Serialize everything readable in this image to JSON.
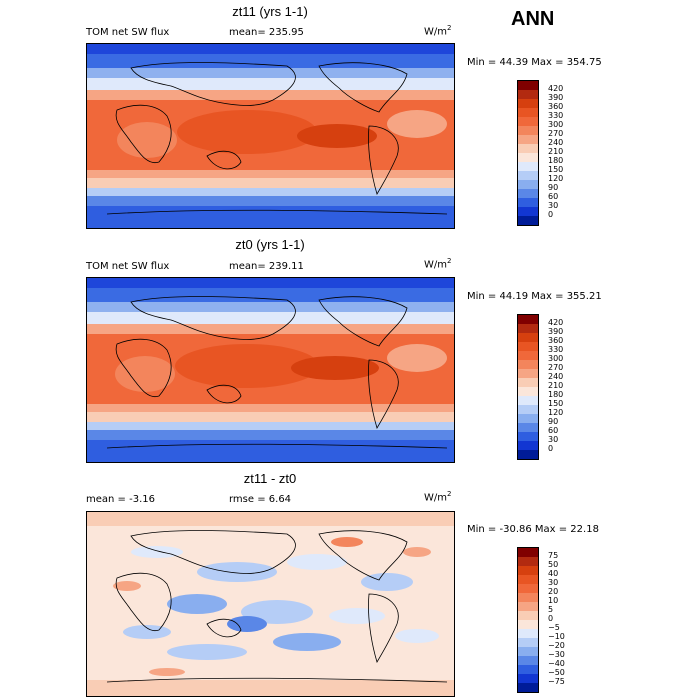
{
  "header": {
    "season": "ANN"
  },
  "panels": [
    {
      "title": "zt11 (yrs 1-1)",
      "left_label": "TOM net SW flux",
      "stat_label": "mean= 235.95",
      "units": "W/m",
      "units_exp": "2",
      "minmax": "Min =  44.39 Max = 354.75",
      "colorbar": {
        "labels": [
          "420",
          "390",
          "360",
          "330",
          "300",
          "270",
          "240",
          "210",
          "180",
          "150",
          "120",
          "90",
          "60",
          "30",
          "0"
        ],
        "colors": [
          "#800000",
          "#b22a10",
          "#d6400f",
          "#e85523",
          "#f0683a",
          "#f3855c",
          "#f6a584",
          "#f9cdb5",
          "#fbe6da",
          "#dfe9fb",
          "#b5cdf6",
          "#89aeef",
          "#5a87e7",
          "#2f5ee0",
          "#1236d2",
          "#001c98"
        ]
      }
    },
    {
      "title": "zt0 (yrs 1-1)",
      "left_label": "TOM net SW flux",
      "stat_label": "mean= 239.11",
      "units": "W/m",
      "units_exp": "2",
      "minmax": "Min =  44.19 Max = 355.21",
      "colorbar": {
        "labels": [
          "420",
          "390",
          "360",
          "330",
          "300",
          "270",
          "240",
          "210",
          "180",
          "150",
          "120",
          "90",
          "60",
          "30",
          "0"
        ],
        "colors": [
          "#800000",
          "#b22a10",
          "#d6400f",
          "#e85523",
          "#f0683a",
          "#f3855c",
          "#f6a584",
          "#f9cdb5",
          "#fbe6da",
          "#dfe9fb",
          "#b5cdf6",
          "#89aeef",
          "#5a87e7",
          "#2f5ee0",
          "#1236d2",
          "#001c98"
        ]
      }
    },
    {
      "title": "zt11 - zt0",
      "left_label": "mean =   -3.16",
      "stat_label": "rmse =    6.64",
      "units": "W/m",
      "units_exp": "2",
      "minmax": "Min = -30.86 Max =  22.18",
      "colorbar": {
        "labels": [
          "75",
          "50",
          "40",
          "30",
          "20",
          "10",
          "5",
          "0",
          "−5",
          "−10",
          "−20",
          "−30",
          "−40",
          "−50",
          "−75"
        ],
        "colors": [
          "#800000",
          "#b22a10",
          "#d6400f",
          "#e85523",
          "#f0683a",
          "#f3855c",
          "#f6a584",
          "#f9cdb5",
          "#fbe6da",
          "#dfe9fb",
          "#b5cdf6",
          "#89aeef",
          "#5a87e7",
          "#2f5ee0",
          "#1236d2",
          "#001c98"
        ]
      }
    }
  ]
}
